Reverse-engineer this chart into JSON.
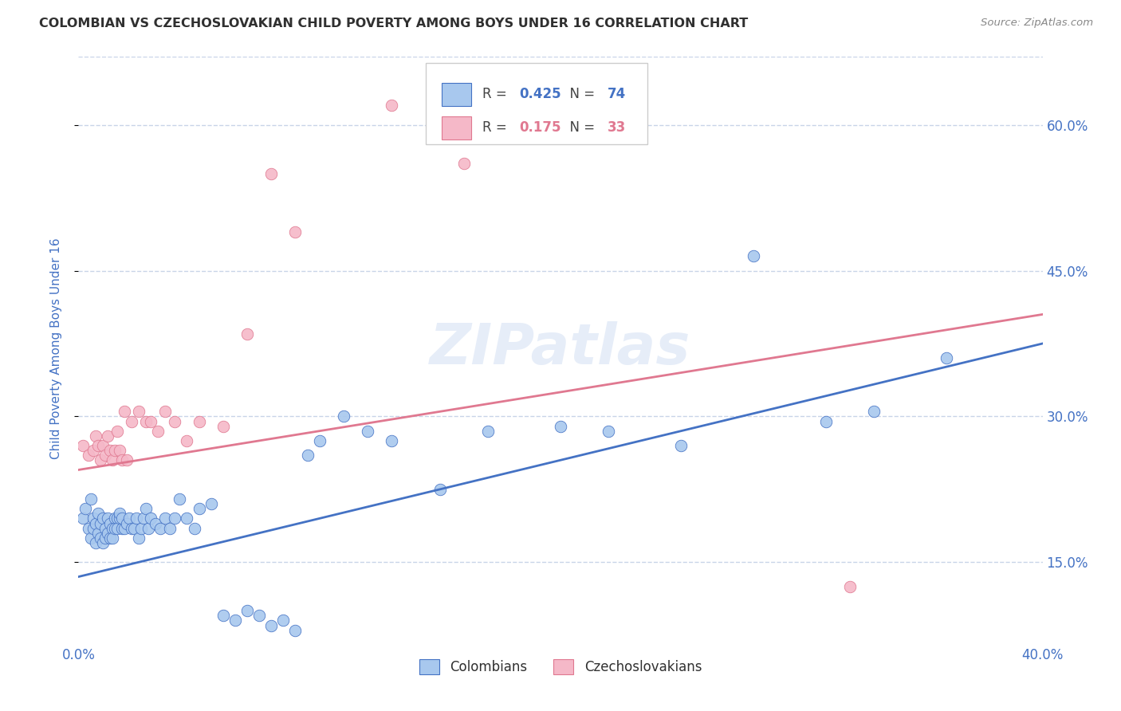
{
  "title": "COLOMBIAN VS CZECHOSLOVAKIAN CHILD POVERTY AMONG BOYS UNDER 16 CORRELATION CHART",
  "source": "Source: ZipAtlas.com",
  "ylabel": "Child Poverty Among Boys Under 16",
  "ytick_labels": [
    "15.0%",
    "30.0%",
    "45.0%",
    "60.0%"
  ],
  "ytick_values": [
    0.15,
    0.3,
    0.45,
    0.6
  ],
  "xlim": [
    0.0,
    0.4
  ],
  "ylim": [
    0.07,
    0.67
  ],
  "blue_R": 0.425,
  "blue_N": 74,
  "pink_R": 0.175,
  "pink_N": 33,
  "blue_color": "#a8c8ee",
  "pink_color": "#f5b8c8",
  "blue_line_color": "#4472c4",
  "pink_line_color": "#e07890",
  "legend_label_blue": "Colombians",
  "legend_label_pink": "Czechoslovakians",
  "watermark": "ZIPatlas",
  "background_color": "#ffffff",
  "grid_color": "#c8d4e8",
  "title_color": "#303030",
  "right_axis_color": "#4472c4",
  "blue_line_start_y": 0.135,
  "blue_line_end_y": 0.375,
  "pink_line_start_y": 0.245,
  "pink_line_end_y": 0.405,
  "blue_scatter_x": [
    0.002,
    0.003,
    0.004,
    0.005,
    0.005,
    0.006,
    0.006,
    0.007,
    0.007,
    0.008,
    0.008,
    0.009,
    0.009,
    0.01,
    0.01,
    0.011,
    0.011,
    0.012,
    0.012,
    0.013,
    0.013,
    0.014,
    0.014,
    0.015,
    0.015,
    0.016,
    0.016,
    0.017,
    0.017,
    0.018,
    0.018,
    0.019,
    0.02,
    0.021,
    0.022,
    0.023,
    0.024,
    0.025,
    0.026,
    0.027,
    0.028,
    0.029,
    0.03,
    0.032,
    0.034,
    0.036,
    0.038,
    0.04,
    0.042,
    0.045,
    0.048,
    0.05,
    0.055,
    0.06,
    0.065,
    0.07,
    0.075,
    0.08,
    0.085,
    0.09,
    0.095,
    0.1,
    0.11,
    0.12,
    0.13,
    0.15,
    0.17,
    0.2,
    0.22,
    0.25,
    0.28,
    0.31,
    0.33,
    0.36
  ],
  "blue_scatter_y": [
    0.195,
    0.205,
    0.185,
    0.175,
    0.215,
    0.185,
    0.195,
    0.17,
    0.19,
    0.18,
    0.2,
    0.175,
    0.19,
    0.17,
    0.195,
    0.185,
    0.175,
    0.195,
    0.18,
    0.19,
    0.175,
    0.185,
    0.175,
    0.195,
    0.185,
    0.195,
    0.185,
    0.195,
    0.2,
    0.185,
    0.195,
    0.185,
    0.19,
    0.195,
    0.185,
    0.185,
    0.195,
    0.175,
    0.185,
    0.195,
    0.205,
    0.185,
    0.195,
    0.19,
    0.185,
    0.195,
    0.185,
    0.195,
    0.215,
    0.195,
    0.185,
    0.205,
    0.21,
    0.095,
    0.09,
    0.1,
    0.095,
    0.085,
    0.09,
    0.08,
    0.26,
    0.275,
    0.3,
    0.285,
    0.275,
    0.225,
    0.285,
    0.29,
    0.285,
    0.27,
    0.465,
    0.295,
    0.305,
    0.36
  ],
  "pink_scatter_x": [
    0.002,
    0.004,
    0.006,
    0.007,
    0.008,
    0.009,
    0.01,
    0.011,
    0.012,
    0.013,
    0.014,
    0.015,
    0.016,
    0.017,
    0.018,
    0.019,
    0.02,
    0.022,
    0.025,
    0.028,
    0.03,
    0.033,
    0.036,
    0.04,
    0.045,
    0.05,
    0.06,
    0.07,
    0.08,
    0.09,
    0.13,
    0.16,
    0.32
  ],
  "pink_scatter_y": [
    0.27,
    0.26,
    0.265,
    0.28,
    0.27,
    0.255,
    0.27,
    0.26,
    0.28,
    0.265,
    0.255,
    0.265,
    0.285,
    0.265,
    0.255,
    0.305,
    0.255,
    0.295,
    0.305,
    0.295,
    0.295,
    0.285,
    0.305,
    0.295,
    0.275,
    0.295,
    0.29,
    0.385,
    0.55,
    0.49,
    0.62,
    0.56,
    0.125
  ]
}
